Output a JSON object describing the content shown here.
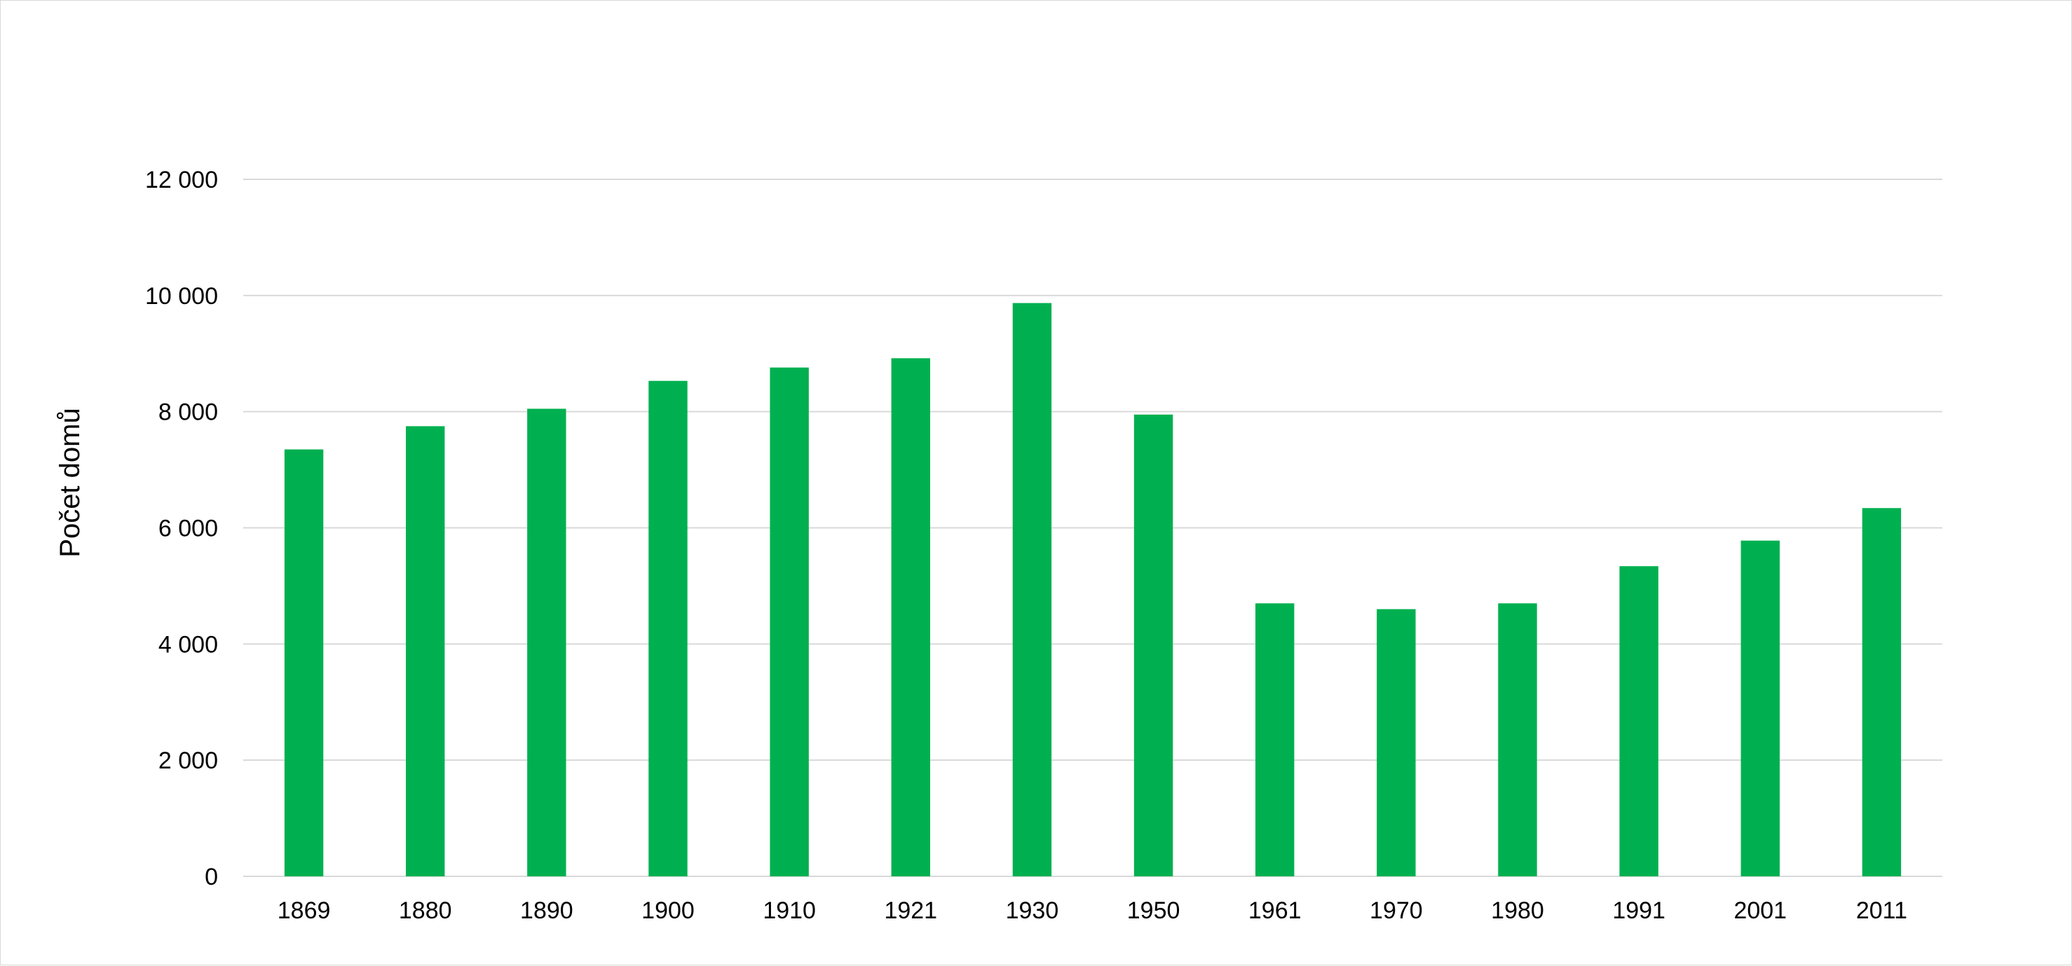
{
  "chart_data": {
    "type": "bar",
    "categories": [
      "1869",
      "1880",
      "1890",
      "1900",
      "1910",
      "1921",
      "1930",
      "1950",
      "1961",
      "1970",
      "1980",
      "1991",
      "2001",
      "2011"
    ],
    "values": [
      7350,
      7750,
      8050,
      8530,
      8760,
      8920,
      9870,
      7950,
      4700,
      4600,
      4700,
      5340,
      5780,
      6340
    ],
    "ylabel": "Počet domů",
    "ylim": [
      0,
      12000
    ],
    "yticks": [
      0,
      2000,
      4000,
      6000,
      8000,
      10000,
      12000
    ],
    "ytick_labels": [
      "0",
      "2 000",
      "4 000",
      "6 000",
      "8 000",
      "10 000",
      "12 000"
    ],
    "bar_color": "#00b050",
    "grid": true,
    "legend": "none"
  }
}
